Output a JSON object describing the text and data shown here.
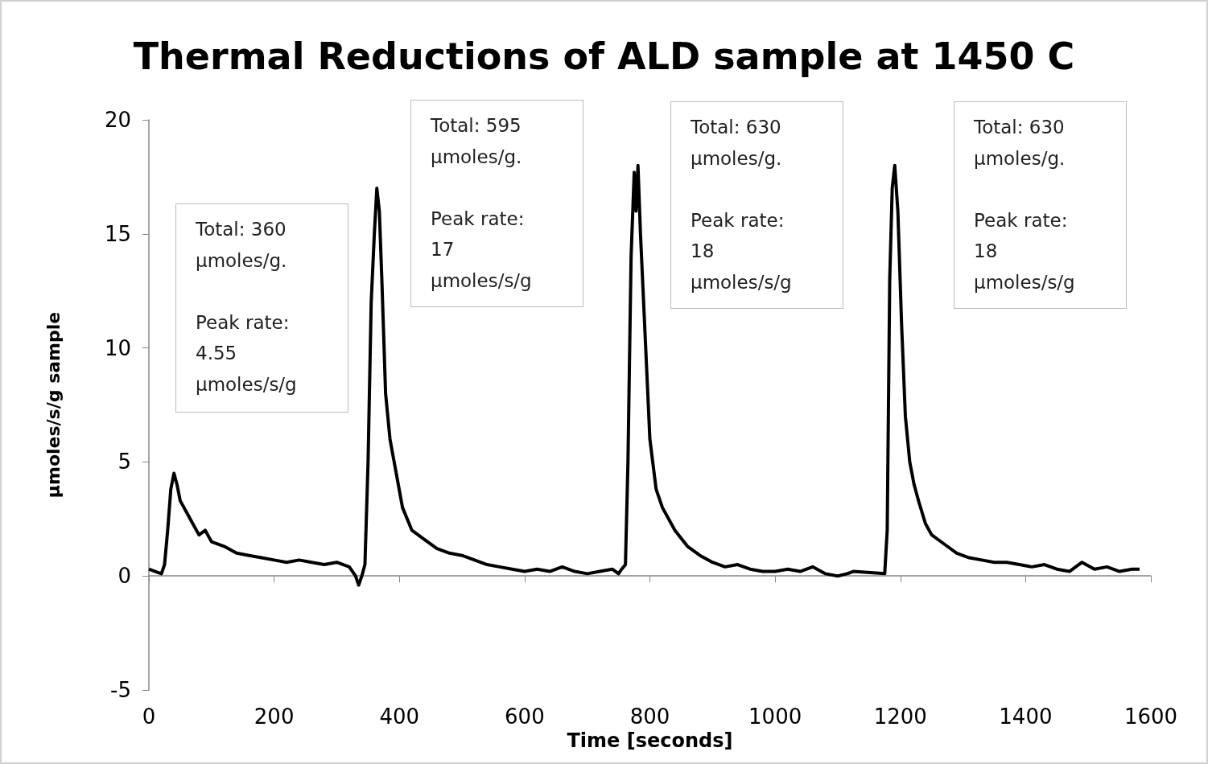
{
  "chart_data": {
    "type": "line",
    "title": "Thermal Reductions of ALD sample at 1450 C",
    "xlabel": "Time [seconds]",
    "ylabel": "µmoles/s/g sample",
    "xlim": [
      0,
      1600
    ],
    "xticks": [
      0,
      200,
      400,
      600,
      800,
      1000,
      1200,
      1400,
      1600
    ],
    "ylim": [
      -5,
      20
    ],
    "yticks": [
      -5,
      0,
      5,
      10,
      15,
      20
    ],
    "marker": "none",
    "line_style": "solid",
    "annotations": [
      "Total: 360\nµmoles/g.\n\nPeak rate:\n4.55\nµmoles/s/g",
      "Total: 595\nµmoles/g.\n\nPeak rate:\n17\nµmoles/s/g",
      "Total: 630\nµmoles/g.\n\nPeak rate:\n18\nµmoles/s/g",
      "Total: 630\nµmoles/g.\n\nPeak rate:\n18\nµmoles/s/g"
    ],
    "series": [
      {
        "color": "#000000",
        "x": [
          0,
          10,
          20,
          25,
          30,
          35,
          40,
          45,
          50,
          60,
          70,
          80,
          90,
          100,
          120,
          140,
          160,
          180,
          200,
          220,
          240,
          260,
          280,
          300,
          320,
          330,
          335,
          340,
          345,
          350,
          355,
          360,
          364,
          368,
          372,
          378,
          385,
          395,
          405,
          420,
          440,
          460,
          480,
          500,
          520,
          540,
          560,
          580,
          600,
          620,
          640,
          660,
          680,
          700,
          720,
          740,
          750,
          755,
          761,
          765,
          770,
          775,
          778,
          781,
          785,
          790,
          795,
          800,
          810,
          820,
          840,
          860,
          880,
          900,
          920,
          940,
          960,
          980,
          1000,
          1020,
          1040,
          1060,
          1080,
          1100,
          1115,
          1125,
          1175,
          1179,
          1183,
          1187,
          1191,
          1196,
          1202,
          1208,
          1215,
          1222,
          1230,
          1240,
          1250,
          1270,
          1290,
          1310,
          1330,
          1350,
          1370,
          1390,
          1410,
          1430,
          1450,
          1470,
          1490,
          1510,
          1530,
          1550,
          1570,
          1582
        ],
        "values": [
          0.3,
          0.2,
          0.1,
          0.5,
          2,
          3.8,
          4.5,
          4,
          3.3,
          2.8,
          2.3,
          1.8,
          2,
          1.5,
          1.3,
          1,
          0.9,
          0.8,
          0.7,
          0.6,
          0.7,
          0.6,
          0.5,
          0.6,
          0.4,
          0,
          -0.4,
          0,
          0.5,
          5,
          12,
          15,
          17,
          16,
          13,
          8,
          6,
          4.5,
          3,
          2,
          1.6,
          1.2,
          1,
          0.9,
          0.7,
          0.5,
          0.4,
          0.3,
          0.2,
          0.3,
          0.2,
          0.4,
          0.2,
          0.1,
          0.2,
          0.3,
          0.1,
          0.3,
          0.5,
          5,
          14,
          17.7,
          16,
          18,
          15,
          12,
          9,
          6,
          3.8,
          3,
          2,
          1.3,
          0.9,
          0.6,
          0.4,
          0.5,
          0.3,
          0.2,
          0.2,
          0.3,
          0.2,
          0.4,
          0.1,
          0,
          0.1,
          0.2,
          0.1,
          2,
          13,
          17,
          18,
          16,
          11,
          7,
          5,
          4,
          3.2,
          2.3,
          1.8,
          1.4,
          1,
          0.8,
          0.7,
          0.6,
          0.6,
          0.5,
          0.4,
          0.5,
          0.3,
          0.2,
          0.6,
          0.3,
          0.4,
          0.2,
          0.3,
          0.3
        ]
      }
    ]
  }
}
